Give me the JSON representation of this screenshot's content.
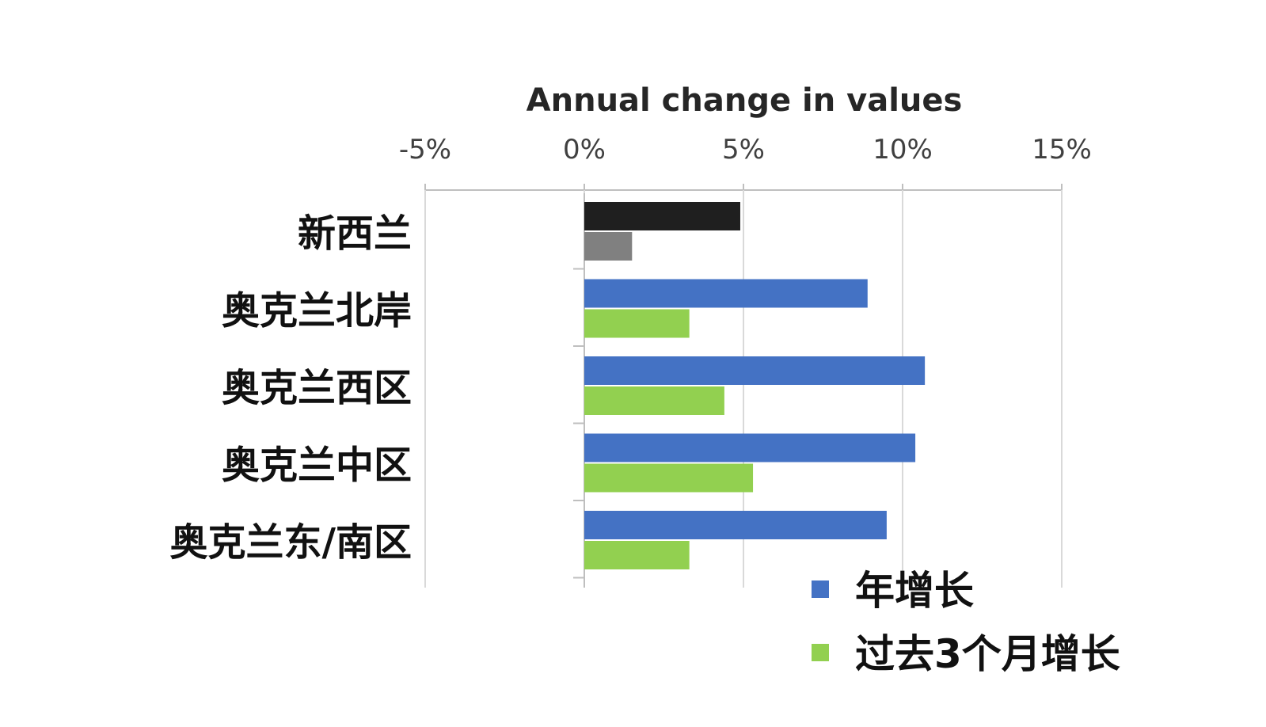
{
  "chart_data": {
    "type": "bar",
    "orientation": "horizontal",
    "title": "Annual change in values",
    "axis_position": "top",
    "xlim": [
      -5,
      15
    ],
    "ticks": [
      {
        "value": -5,
        "label": "-5%"
      },
      {
        "value": 0,
        "label": "0%"
      },
      {
        "value": 5,
        "label": "5%"
      },
      {
        "value": 10,
        "label": "10%"
      },
      {
        "value": 15,
        "label": "15%"
      }
    ],
    "grid": true,
    "legend_position": "bottom-right",
    "categories": [
      "新西兰",
      "奥克兰北岸",
      "奥克兰西区",
      "奥克兰中区",
      "奥克兰东/南区"
    ],
    "series": [
      {
        "name": "年增长",
        "values": [
          4.9,
          8.9,
          10.7,
          10.4,
          9.5
        ],
        "color": "#4472c4",
        "point_colors": [
          "#1f1f1f",
          "#4472c4",
          "#4472c4",
          "#4472c4",
          "#4472c4"
        ]
      },
      {
        "name": "过去3个月增长",
        "values": [
          1.5,
          3.3,
          4.4,
          5.3,
          3.3
        ],
        "color": "#92d050",
        "point_colors": [
          "#808080",
          "#92d050",
          "#92d050",
          "#92d050",
          "#92d050"
        ]
      }
    ]
  }
}
